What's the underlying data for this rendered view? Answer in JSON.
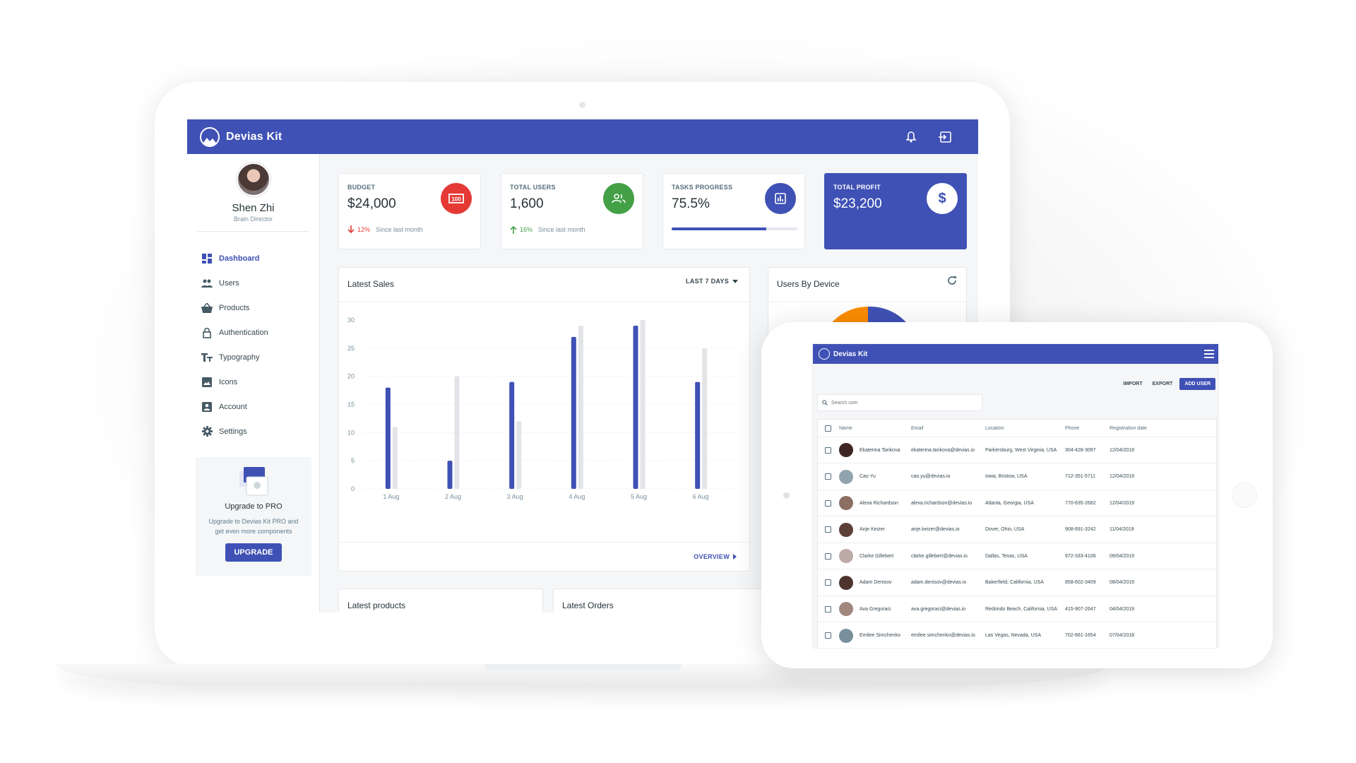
{
  "app": {
    "name": "Devias Kit"
  },
  "profile": {
    "name": "Shen Zhi",
    "role": "Brain Director"
  },
  "sidebar": {
    "items": [
      {
        "label": "Dashboard",
        "icon": "dashboard-icon",
        "active": true
      },
      {
        "label": "Users",
        "icon": "people-icon"
      },
      {
        "label": "Products",
        "icon": "basket-icon"
      },
      {
        "label": "Authentication",
        "icon": "lock-icon"
      },
      {
        "label": "Typography",
        "icon": "text-fields-icon"
      },
      {
        "label": "Icons",
        "icon": "image-icon"
      },
      {
        "label": "Account",
        "icon": "account-box-icon"
      },
      {
        "label": "Settings",
        "icon": "gear-icon"
      }
    ],
    "upgrade": {
      "title": "Upgrade to PRO",
      "text": "Upgrade to Devias Kit PRO and get even more components",
      "button": "UPGRADE"
    }
  },
  "kpis": {
    "budget": {
      "label": "BUDGET",
      "value": "$24,000",
      "diff": "12%",
      "since": "Since last month",
      "color": "#e53935"
    },
    "users": {
      "label": "TOTAL USERS",
      "value": "1,600",
      "diff": "16%",
      "since": "Since last month",
      "color": "#43a047"
    },
    "tasks": {
      "label": "TASKS PROGRESS",
      "value": "75.5%",
      "progress": 75.5,
      "color": "#3f51b5"
    },
    "profit": {
      "label": "TOTAL PROFIT",
      "value": "$23,200",
      "color": "#3f51b5"
    }
  },
  "sales": {
    "title": "Latest Sales",
    "range": "LAST 7 DAYS",
    "overview": "OVERVIEW"
  },
  "devices": {
    "title": "Users By Device"
  },
  "products": {
    "title": "Latest products"
  },
  "orders": {
    "title": "Latest Orders"
  },
  "chart_data": {
    "type": "bar",
    "categories": [
      "1 Aug",
      "2 Aug",
      "3 Aug",
      "4 Aug",
      "5 Aug",
      "6 Aug"
    ],
    "series": [
      {
        "values": [
          18,
          5,
          19,
          27,
          29,
          19
        ],
        "color": "#3f51b5"
      },
      {
        "values": [
          11,
          20,
          12,
          29,
          30,
          25
        ],
        "color": "#e3e4e8"
      }
    ],
    "yticks": [
      0,
      5,
      10,
      15,
      20,
      25,
      30
    ],
    "ylim": [
      0,
      30
    ],
    "grid": true
  },
  "tablet": {
    "app_name": "Devias Kit",
    "actions": {
      "import": "IMPORT",
      "export": "EXPORT",
      "add": "ADD USER"
    },
    "search_placeholder": "Search user",
    "columns": [
      "Name",
      "Email",
      "Location",
      "Phone",
      "Registration date"
    ],
    "rows": [
      {
        "name": "Ekaterina Tankova",
        "email": "ekaterina.tankova@devias.io",
        "location": "Parkersburg, West Virginia, USA",
        "phone": "304-428-3097",
        "date": "12/04/2019"
      },
      {
        "name": "Cao Yu",
        "email": "cao.yu@devias.io",
        "location": "Iowa, Bristow, USA",
        "phone": "712-351-5711",
        "date": "12/04/2019"
      },
      {
        "name": "Alexa Richardson",
        "email": "alexa.richardson@devias.io",
        "location": "Atlanta, Georgia, USA",
        "phone": "770-635-2682",
        "date": "12/04/2019"
      },
      {
        "name": "Anje Keizer",
        "email": "anje.keizer@devias.io",
        "location": "Dover, Ohio, USA",
        "phone": "908-691-3242",
        "date": "11/04/2019"
      },
      {
        "name": "Clarke Gillebert",
        "email": "clarke.gillebert@devias.io",
        "location": "Dallas, Texas, USA",
        "phone": "972-333-4106",
        "date": "09/04/2019"
      },
      {
        "name": "Adam Denisov",
        "email": "adam.denisov@devias.io",
        "location": "Bakerfield, California, USA",
        "phone": "858-602-3409",
        "date": "08/04/2019"
      },
      {
        "name": "Ava Gregoraci",
        "email": "ava.gregoraci@devias.io",
        "location": "Redondo Beach, California, USA",
        "phone": "415-907-2647",
        "date": "04/04/2019"
      },
      {
        "name": "Emilee Simchenko",
        "email": "emilee.simchenko@devias.io",
        "location": "Las Vegas, Nevada, USA",
        "phone": "702-661-1654",
        "date": "07/04/2018"
      }
    ]
  }
}
